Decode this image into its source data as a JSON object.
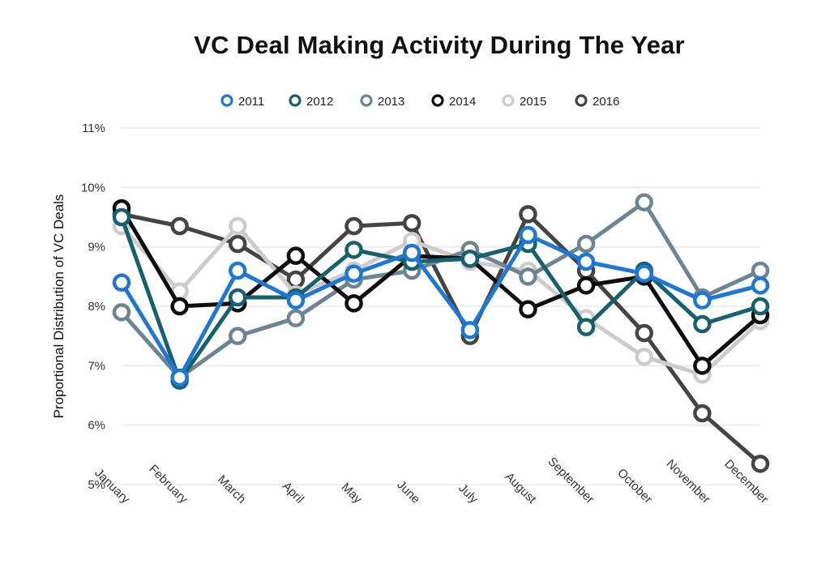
{
  "chart_data": {
    "type": "line",
    "title": "VC Deal Making Activity During The Year",
    "xlabel": "",
    "ylabel": "Proportional Distribution of VC Deals",
    "categories": [
      "January",
      "February",
      "March",
      "April",
      "May",
      "June",
      "July",
      "August",
      "September",
      "October",
      "November",
      "December"
    ],
    "ylim": [
      5,
      11
    ],
    "yticks": [
      "5%",
      "6%",
      "7%",
      "8%",
      "9%",
      "10%",
      "11%"
    ],
    "grid": true,
    "legend_position": "top",
    "series": [
      {
        "name": "2011",
        "color": "#1f77d4",
        "values": [
          8.4,
          6.8,
          8.6,
          8.1,
          8.55,
          8.9,
          7.6,
          9.2,
          8.75,
          8.55,
          8.1,
          8.35
        ]
      },
      {
        "name": "2012",
        "color": "#15616d",
        "values": [
          9.5,
          6.75,
          8.15,
          8.15,
          8.95,
          8.75,
          8.8,
          9.05,
          7.65,
          8.6,
          7.7,
          8.0
        ]
      },
      {
        "name": "2013",
        "color": "#6d8592",
        "values": [
          7.9,
          6.8,
          7.5,
          7.8,
          8.45,
          8.6,
          8.95,
          8.5,
          9.05,
          9.75,
          8.15,
          8.6
        ]
      },
      {
        "name": "2014",
        "color": "#0d0d0d",
        "values": [
          9.65,
          8.0,
          8.05,
          8.85,
          8.05,
          8.85,
          8.8,
          7.95,
          8.35,
          8.5,
          7.0,
          7.85
        ]
      },
      {
        "name": "2015",
        "color": "#cccccc",
        "values": [
          9.35,
          8.25,
          9.35,
          8.2,
          8.6,
          9.1,
          8.75,
          8.6,
          7.8,
          7.15,
          6.85,
          7.75
        ]
      },
      {
        "name": "2016",
        "color": "#444444",
        "values": [
          9.55,
          9.35,
          9.05,
          8.45,
          9.35,
          9.4,
          7.5,
          9.55,
          8.6,
          7.55,
          6.2,
          5.35
        ]
      }
    ],
    "draw_order": [
      "2016",
      "2015",
      "2013",
      "2014",
      "2012",
      "2011"
    ]
  }
}
